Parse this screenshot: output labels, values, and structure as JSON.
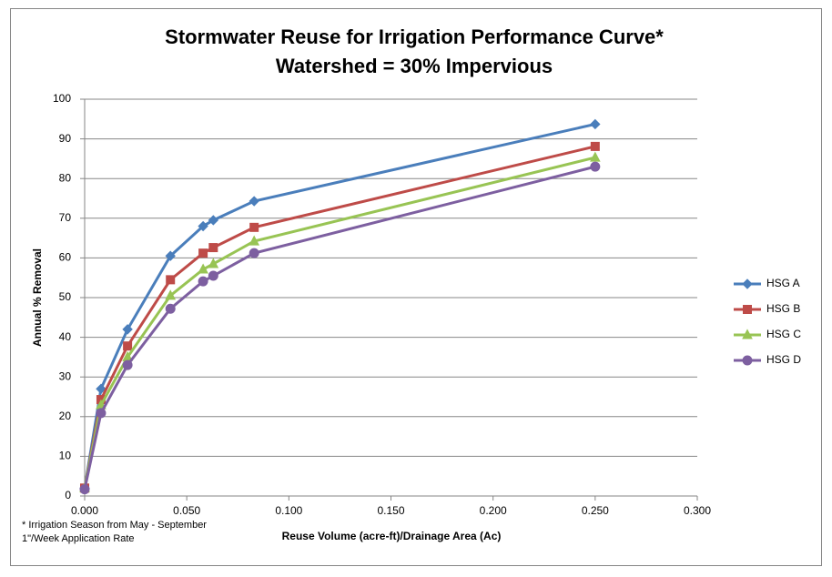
{
  "chart_data": {
    "type": "line",
    "title": "Stormwater Reuse for Irrigation Performance Curve*",
    "subtitle": "Watershed = 30% Impervious",
    "x_label": "Reuse Volume (acre-ft)/Drainage Area (Ac)",
    "y_label": "Annual % Removal",
    "notes": [
      "* Irrigation Season from May - September",
      "1\"/Week Application Rate"
    ],
    "x": [
      0,
      0.008,
      0.021,
      0.042,
      0.058,
      0.063,
      0.083,
      0.25
    ],
    "series": [
      {
        "name": "HSG A",
        "color": "#4a7ebb",
        "marker": "diamond",
        "values": [
          2,
          27,
          42,
          60.5,
          68,
          69.5,
          74.3,
          93.7
        ]
      },
      {
        "name": "HSG B",
        "color": "#be4b48",
        "marker": "square",
        "values": [
          2,
          24.3,
          37.8,
          54.5,
          61.2,
          62.6,
          67.7,
          88.1
        ]
      },
      {
        "name": "HSG C",
        "color": "#98c454",
        "marker": "triangle",
        "values": [
          2,
          22.9,
          35,
          50.5,
          57.1,
          58.5,
          64.2,
          85.3
        ]
      },
      {
        "name": "HSG D",
        "color": "#7d5fa0",
        "marker": "circle",
        "values": [
          1.7,
          20.9,
          33,
          47.2,
          54.1,
          55.5,
          61.2,
          83
        ]
      }
    ],
    "xlim": [
      0,
      0.3
    ],
    "xticks": [
      {
        "value": 0,
        "label": "0.000"
      },
      {
        "value": 0.05,
        "label": "0.050"
      },
      {
        "value": 0.1,
        "label": "0.100"
      },
      {
        "value": 0.15,
        "label": "0.150"
      },
      {
        "value": 0.2,
        "label": "0.200"
      },
      {
        "value": 0.25,
        "label": "0.250"
      },
      {
        "value": 0.3,
        "label": "0.300"
      }
    ],
    "ylim": [
      0,
      100
    ],
    "yticks": [
      0,
      10,
      20,
      30,
      40,
      50,
      60,
      70,
      80,
      90,
      100
    ],
    "grid": true,
    "legend": "right"
  }
}
